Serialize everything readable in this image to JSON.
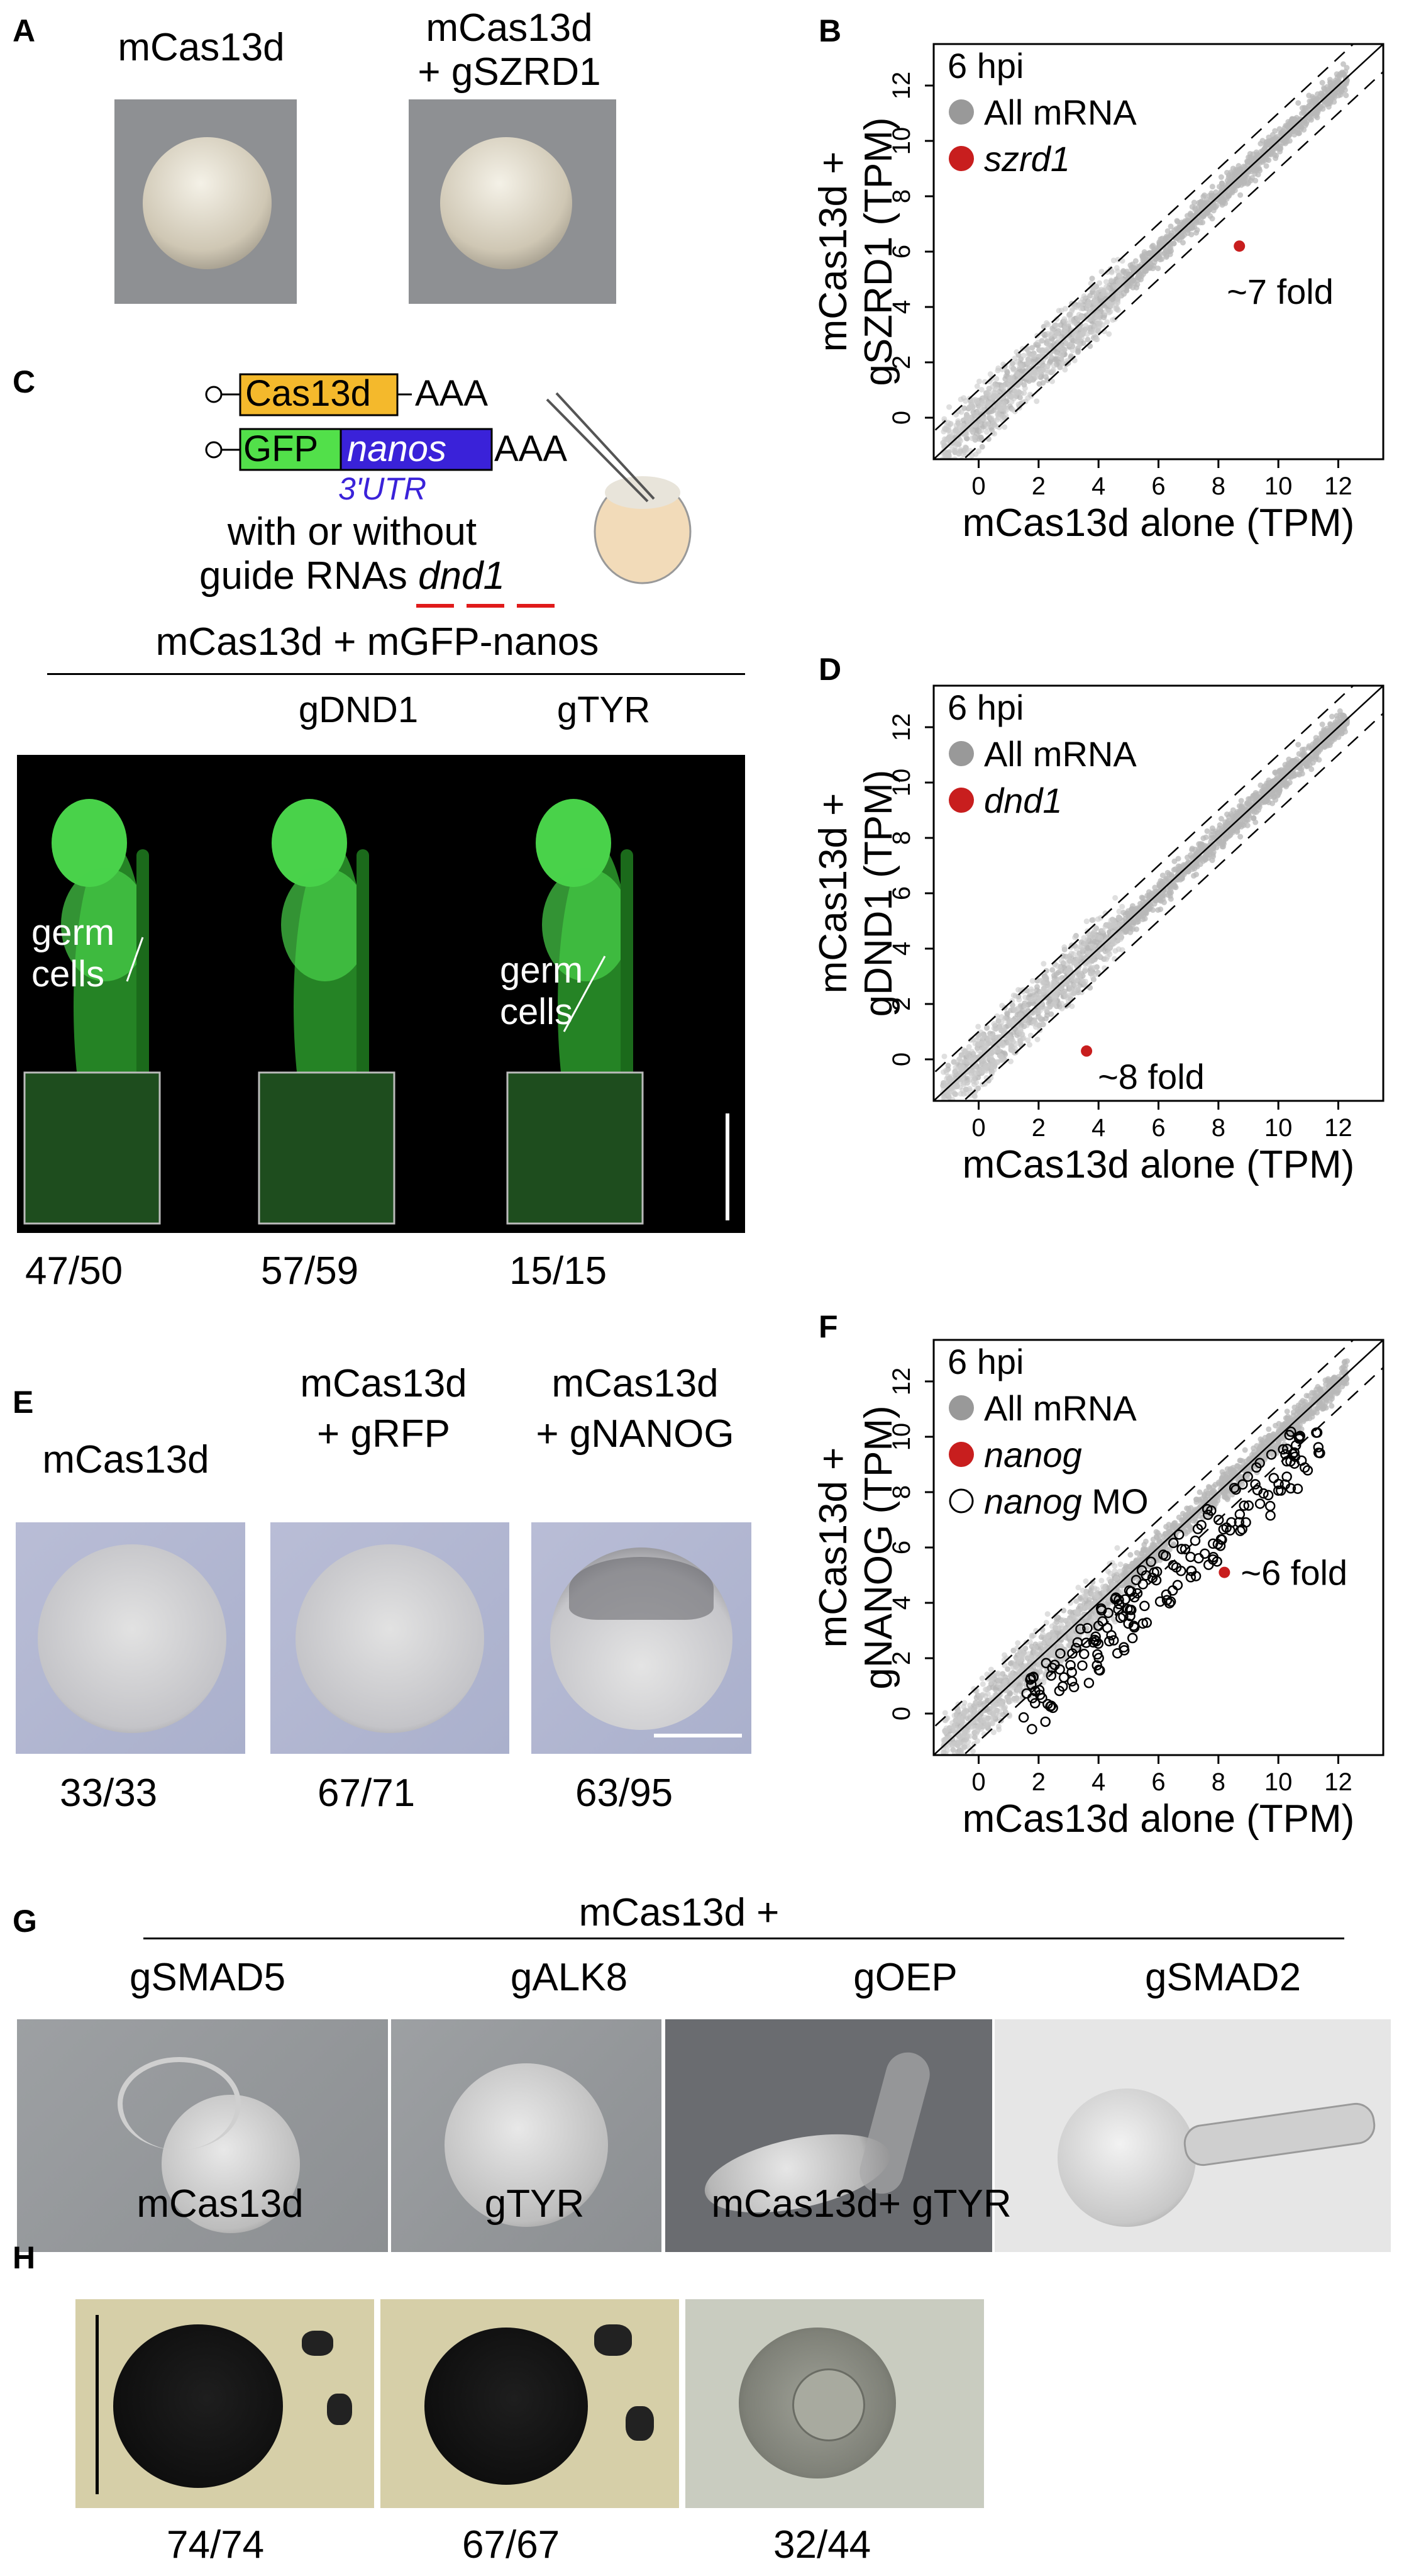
{
  "panelA": {
    "label": "A",
    "col1": "mCas13d",
    "col2_line1": "mCas13d",
    "col2_line2": "+ gSZRD1"
  },
  "panelB": {
    "label": "B",
    "legend_time": "6 hpi",
    "legend_all": "All mRNA",
    "legend_gene": "szrd1",
    "ylabel_line1": "mCas13d +",
    "ylabel_line2": "gSZRD1 (TPM)",
    "xlabel": "mCas13d alone (TPM)",
    "annotation": "~7 fold"
  },
  "panelC": {
    "label": "C",
    "cas13d": "Cas13d",
    "aaa1": "AAA",
    "gfp": "GFP",
    "nanos": "nanos",
    "aaa2": "AAA",
    "utr": "3'UTR",
    "line1": "with or without",
    "line2_pre": "guide RNAs ",
    "line2_gene": "dnd1",
    "title": "mCas13d + mGFP-nanos",
    "col2": "gDND1",
    "col3": "gTYR",
    "germ1": "germ",
    "germ1b": "cells",
    "germ2": "germ",
    "germ2b": "cells",
    "count1": "47/50",
    "count2": "57/59",
    "count3": "15/15"
  },
  "panelD": {
    "label": "D",
    "legend_time": "6 hpi",
    "legend_all": "All mRNA",
    "legend_gene": "dnd1",
    "ylabel_line1": "mCas13d +",
    "ylabel_line2": "gDND1 (TPM)",
    "xlabel": "mCas13d alone (TPM)",
    "annotation": "~8 fold"
  },
  "panelE": {
    "label": "E",
    "col1": "mCas13d",
    "col2_line1": "mCas13d",
    "col2_line2": "+ gRFP",
    "col3_line1": "mCas13d",
    "col3_line2": "+ gNANOG",
    "count1": "33/33",
    "count2": "67/71",
    "count3": "63/95"
  },
  "panelF": {
    "label": "F",
    "legend_time": "6 hpi",
    "legend_all": "All mRNA",
    "legend_gene": "nanog",
    "legend_mo_gene": "nanog",
    "legend_mo": " MO",
    "ylabel_line1": "mCas13d +",
    "ylabel_line2": "gNANOG (TPM)",
    "xlabel": "mCas13d alone (TPM)",
    "annotation": "~6 fold"
  },
  "panelG": {
    "label": "G",
    "title": "mCas13d +",
    "col1": "gSMAD5",
    "col2": "gALK8",
    "col3": "gOEP",
    "col4": "gSMAD2"
  },
  "panelH": {
    "label": "H",
    "col1": "mCas13d",
    "col2": "gTYR",
    "col3": "mCas13d+ gTYR",
    "count1": "74/74",
    "count2": "67/67",
    "count3": "32/44"
  },
  "chart_data": [
    {
      "type": "scatter",
      "panel": "B",
      "xlabel": "mCas13d alone (TPM)",
      "ylabel": "mCas13d + gSZRD1 (TPM)",
      "xlim": [
        -1.5,
        13.5
      ],
      "ylim": [
        -1.5,
        13.5
      ],
      "ticks": [
        0,
        2,
        4,
        6,
        8,
        10,
        12
      ],
      "highlight": {
        "name": "szrd1",
        "x": 8.7,
        "y": 6.2
      },
      "series": [
        {
          "name": "All mRNA",
          "color": "#b5b5b5"
        }
      ],
      "fold_lines": true
    },
    {
      "type": "scatter",
      "panel": "D",
      "xlabel": "mCas13d alone (TPM)",
      "ylabel": "mCas13d + gDND1 (TPM)",
      "xlim": [
        -1.5,
        13.5
      ],
      "ylim": [
        -1.5,
        13.5
      ],
      "ticks": [
        0,
        2,
        4,
        6,
        8,
        10,
        12
      ],
      "highlight": {
        "name": "dnd1",
        "x": 3.6,
        "y": 0.3
      },
      "series": [
        {
          "name": "All mRNA",
          "color": "#b5b5b5"
        }
      ],
      "fold_lines": true
    },
    {
      "type": "scatter",
      "panel": "F",
      "xlabel": "mCas13d alone (TPM)",
      "ylabel": "mCas13d + gNANOG (TPM)",
      "xlim": [
        -1.5,
        13.5
      ],
      "ylim": [
        -1.5,
        13.5
      ],
      "ticks": [
        0,
        2,
        4,
        6,
        8,
        10,
        12
      ],
      "highlight": {
        "name": "nanog",
        "x": 8.2,
        "y": 5.1
      },
      "series": [
        {
          "name": "All mRNA",
          "color": "#b5b5b5"
        },
        {
          "name": "nanog MO",
          "color": "#000000"
        }
      ],
      "fold_lines": true
    }
  ]
}
